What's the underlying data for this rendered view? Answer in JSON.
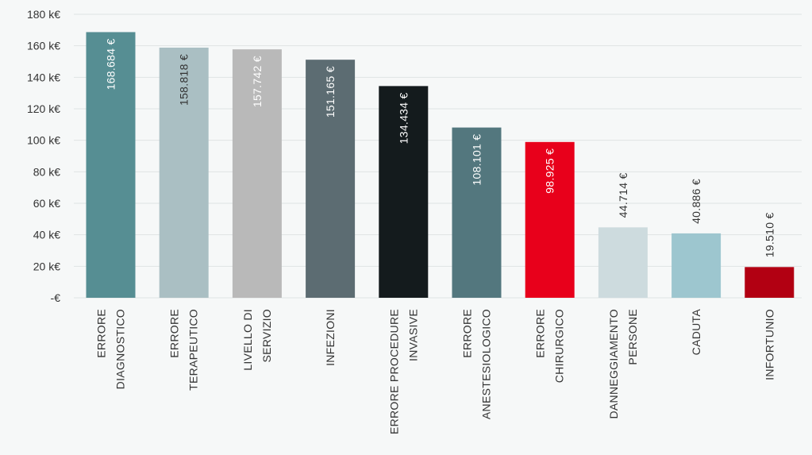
{
  "chart_data": {
    "type": "bar",
    "title": "",
    "xlabel": "",
    "ylabel": "",
    "ylim": [
      0,
      180000
    ],
    "yticks": [
      {
        "value": 0,
        "label": "-€"
      },
      {
        "value": 20000,
        "label": "20 k€"
      },
      {
        "value": 40000,
        "label": "40 k€"
      },
      {
        "value": 60000,
        "label": "60 k€"
      },
      {
        "value": 80000,
        "label": "80 k€"
      },
      {
        "value": 100000,
        "label": "100 k€"
      },
      {
        "value": 120000,
        "label": "120 k€"
      },
      {
        "value": 140000,
        "label": "140 k€"
      },
      {
        "value": 160000,
        "label": "160 k€"
      },
      {
        "value": 180000,
        "label": "180 k€"
      }
    ],
    "grid": true,
    "categories": [
      [
        "ERRORE",
        "DIAGNOSTICO"
      ],
      [
        "ERRORE",
        "TERAPEUTICO"
      ],
      [
        "LIVELLO DI",
        "SERVIZIO"
      ],
      [
        "INFEZIONI"
      ],
      [
        "ERRORE PROCEDURE",
        "INVASIVE"
      ],
      [
        "ERRORE",
        "ANESTESIOLOGICO"
      ],
      [
        "ERRORE",
        "CHIRURGICO"
      ],
      [
        "DANNEGGIAMENTO",
        "PERSONE"
      ],
      [
        "CADUTA"
      ],
      [
        "INFORTUNIO"
      ]
    ],
    "values": [
      168684,
      158818,
      157742,
      151165,
      134434,
      108101,
      98925,
      44714,
      40886,
      19510
    ],
    "value_labels": [
      "168.684 €",
      "158.818 €",
      "157.742 €",
      "151.165 €",
      "134.434 €",
      "108.101 €",
      "98.925 €",
      "44.714 €",
      "40.886 €",
      "19.510 €"
    ],
    "label_position": [
      "inside",
      "inside",
      "inside",
      "inside",
      "inside",
      "inside",
      "inside",
      "above",
      "above",
      "above"
    ],
    "colors": [
      "#568e93",
      "#aabfc3",
      "#b9b9b9",
      "#5c6c72",
      "#141b1d",
      "#53777e",
      "#e8001b",
      "#cddbde",
      "#9dc6cf",
      "#b20012"
    ],
    "label_colors": [
      "#ffffff",
      "#333333",
      "#ffffff",
      "#ffffff",
      "#ffffff",
      "#ffffff",
      "#ffffff",
      "#333333",
      "#333333",
      "#333333"
    ]
  }
}
